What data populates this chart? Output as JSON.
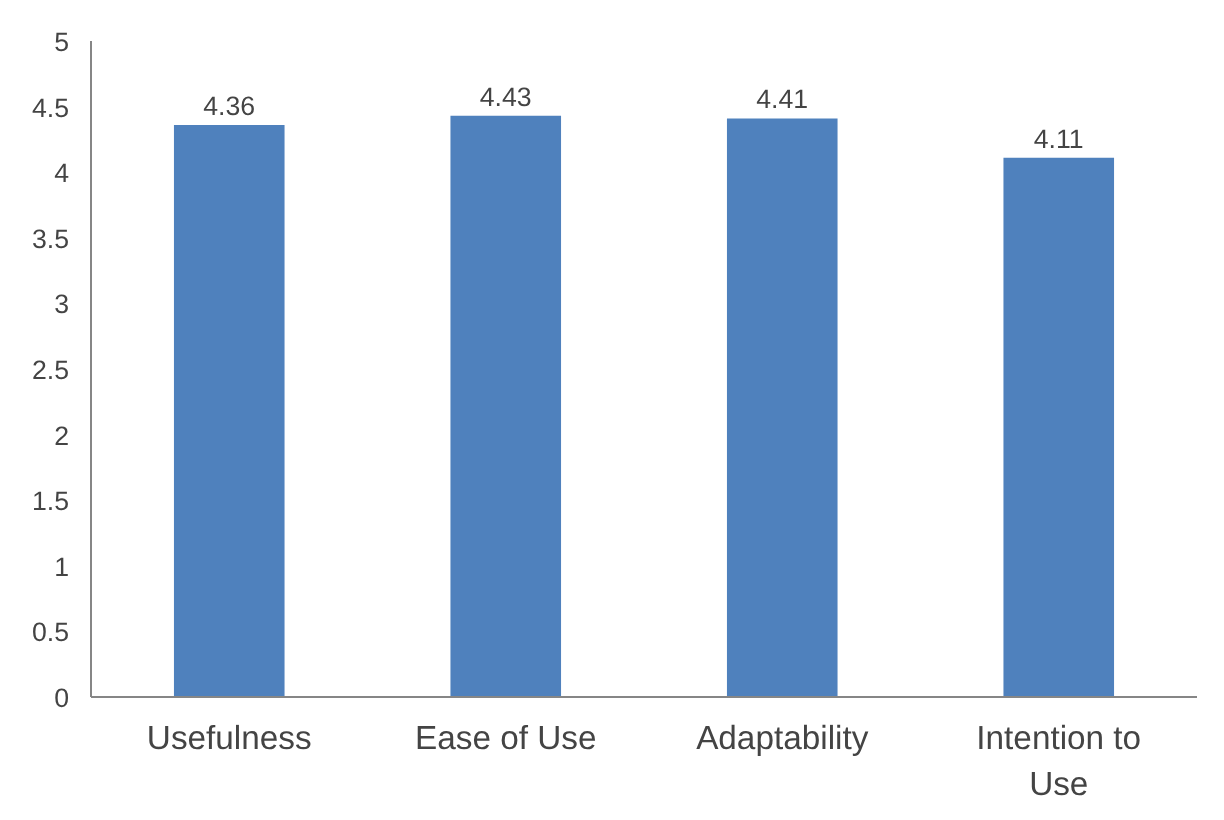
{
  "chart_data": {
    "type": "bar",
    "categories": [
      "Usefulness",
      "Ease of Use",
      "Adaptability",
      "Intention to Use"
    ],
    "values": [
      4.36,
      4.43,
      4.41,
      4.11
    ],
    "color": "#4f81bd",
    "ylim": [
      0,
      5
    ],
    "yticks": [
      0,
      0.5,
      1,
      1.5,
      2,
      2.5,
      3,
      3.5,
      4,
      4.5,
      5
    ],
    "data_labels": true
  }
}
